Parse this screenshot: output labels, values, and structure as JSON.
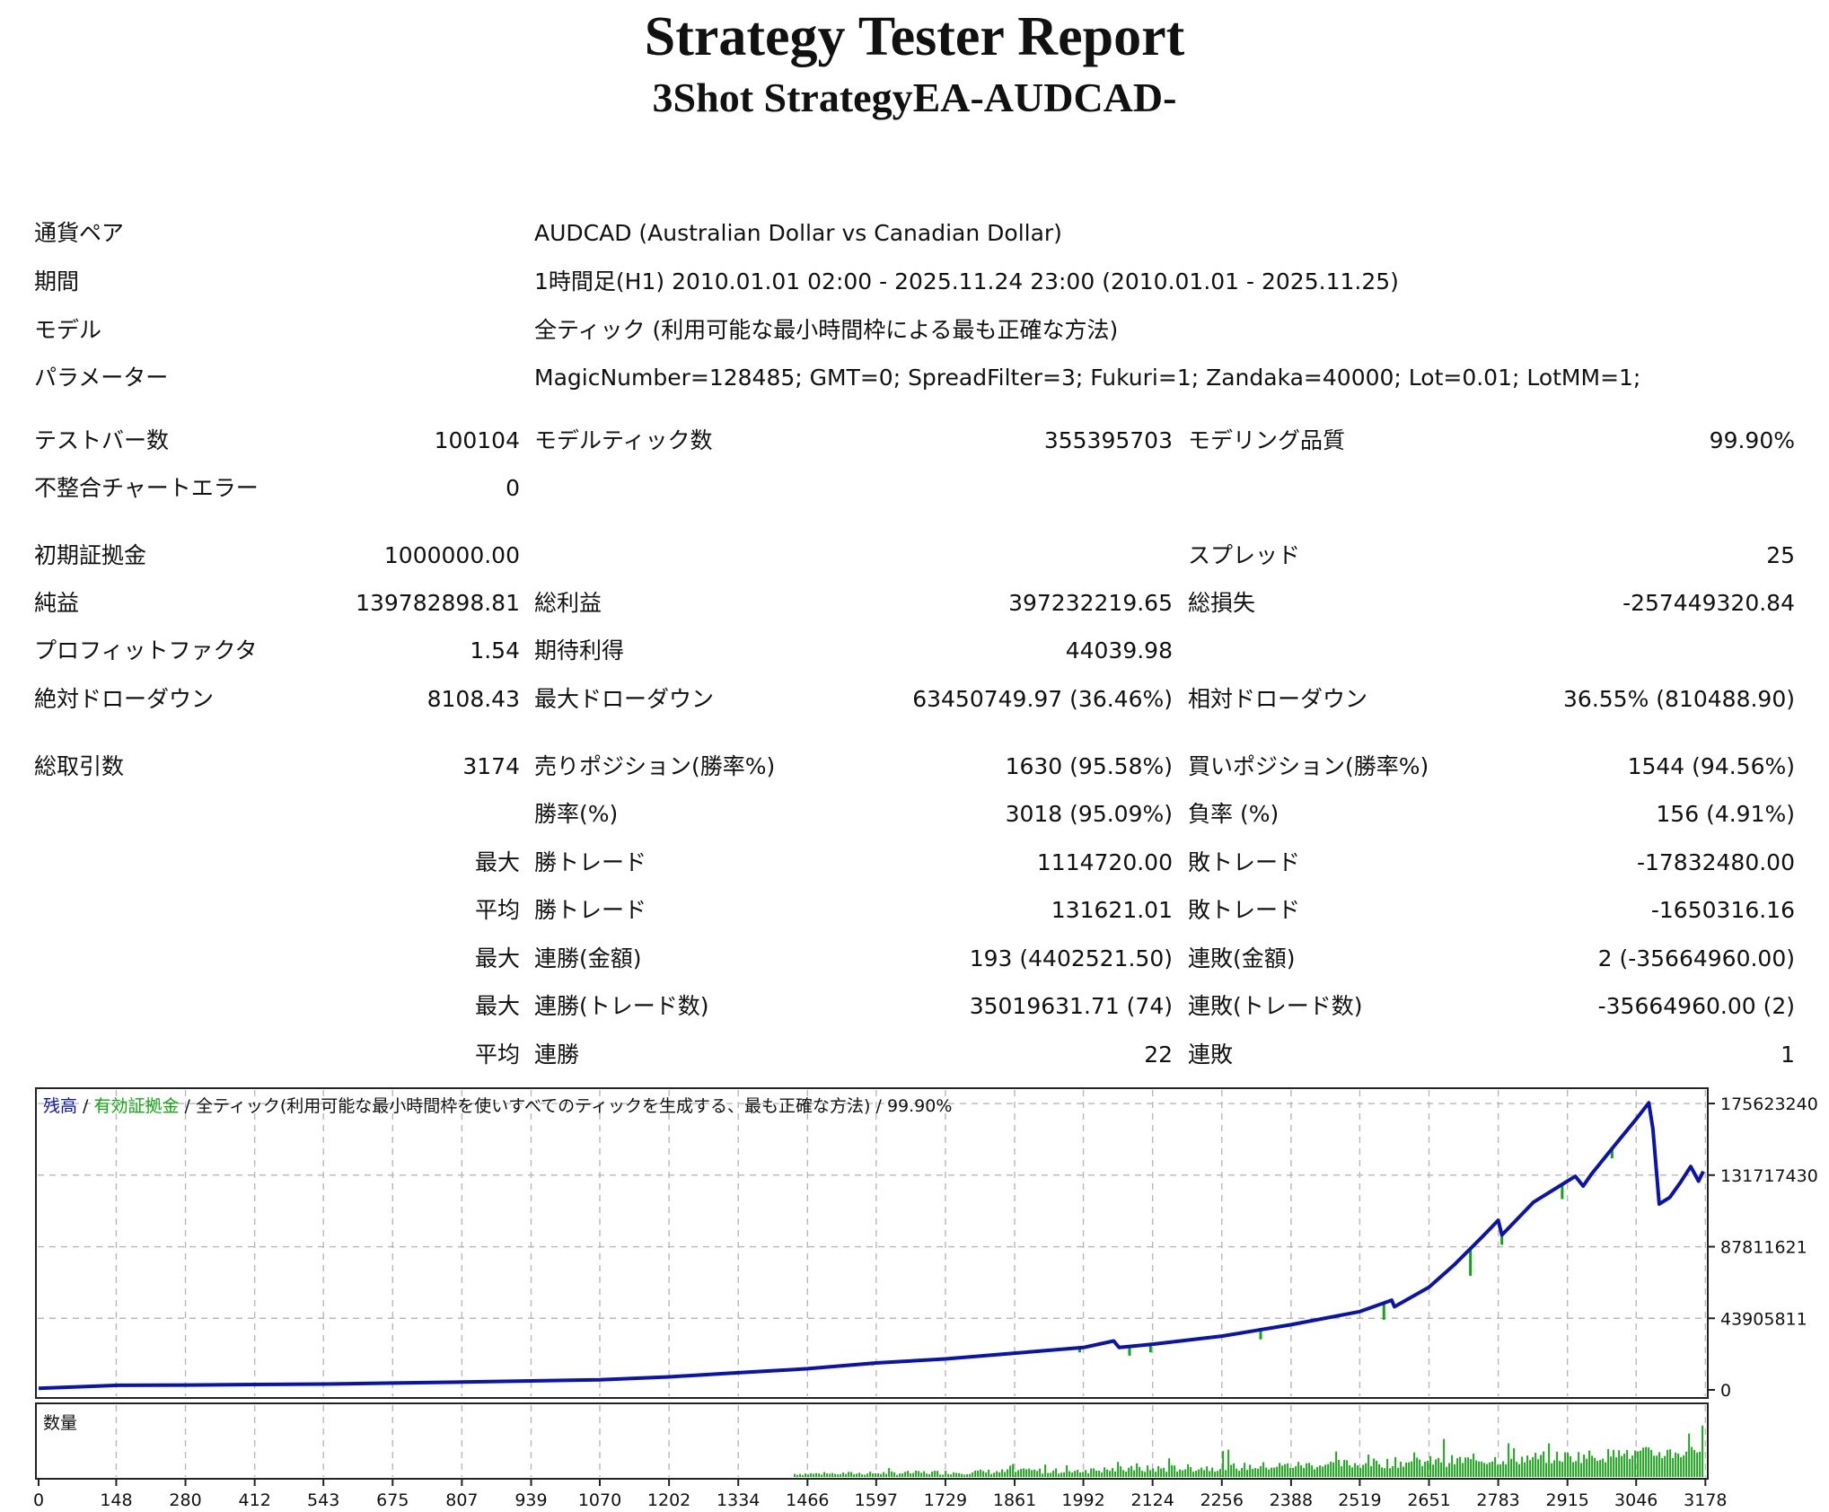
{
  "report": {
    "title": "Strategy Tester Report",
    "subtitle": "3Shot StrategyEA-AUDCAD-"
  },
  "info": {
    "pair_label": "通貨ペア",
    "pair_value": "AUDCAD (Australian Dollar vs Canadian Dollar)",
    "period_label": "期間",
    "period_value": "1時間足(H1) 2010.01.01 02:00 - 2025.11.24 23:00 (2010.01.01 - 2025.11.25)",
    "model_label": "モデル",
    "model_value": "全ティック (利用可能な最小時間枠による最も正確な方法)",
    "params_label": "パラメーター",
    "params_value": "MagicNumber=128485; GMT=0; SpreadFilter=3; Fukuri=1; Zandaka=40000; Lot=0.01; LotMM=1;"
  },
  "stats": {
    "bars_label": "テストバー数",
    "bars_value": "100104",
    "ticks_label": "モデルティック数",
    "ticks_value": "355395703",
    "quality_label": "モデリング品質",
    "quality_value": "99.90%",
    "mismatch_label": "不整合チャートエラー",
    "mismatch_value": "0",
    "deposit_label": "初期証拠金",
    "deposit_value": "1000000.00",
    "spread_label": "スプレッド",
    "spread_value": "25",
    "net_label": "純益",
    "net_value": "139782898.81",
    "gross_profit_label": "総利益",
    "gross_profit_value": "397232219.65",
    "gross_loss_label": "総損失",
    "gross_loss_value": "-257449320.84",
    "pf_label": "プロフィットファクタ",
    "pf_value": "1.54",
    "expected_label": "期待利得",
    "expected_value": "44039.98",
    "abs_dd_label": "絶対ドローダウン",
    "abs_dd_value": "8108.43",
    "max_dd_label": "最大ドローダウン",
    "max_dd_value": "63450749.97 (36.46%)",
    "rel_dd_label": "相対ドローダウン",
    "rel_dd_value": "36.55% (810488.90)",
    "trades_label": "総取引数",
    "trades_value": "3174",
    "short_label": "売りポジション(勝率%)",
    "short_value": "1630 (95.58%)",
    "long_label": "買いポジション(勝率%)",
    "long_value": "1544 (94.56%)",
    "win_label": "勝率(%)",
    "win_value": "3018 (95.09%)",
    "loss_label": "負率 (%)",
    "loss_value": "156 (4.91%)",
    "max_label_1": "最大",
    "largest_win_label": "勝トレード",
    "largest_win_value": "1114720.00",
    "largest_loss_label": "敗トレード",
    "largest_loss_value": "-17832480.00",
    "avg_label_1": "平均",
    "avg_win_label": "勝トレード",
    "avg_win_value": "131621.01",
    "avg_loss_label": "敗トレード",
    "avg_loss_value": "-1650316.16",
    "max_label_2": "最大",
    "consec_wins_money_label": "連勝(金額)",
    "consec_wins_money_value": "193 (4402521.50)",
    "consec_losses_money_label": "連敗(金額)",
    "consec_losses_money_value": "2 (-35664960.00)",
    "max_label_3": "最大",
    "consec_wins_trades_label": "連勝(トレード数)",
    "consec_wins_trades_value": "35019631.71 (74)",
    "consec_losses_trades_label": "連敗(トレード数)",
    "consec_losses_trades_value": "-35664960.00 (2)",
    "avg_label_2": "平均",
    "avg_consec_wins_label": "連勝",
    "avg_consec_wins_value": "22",
    "avg_consec_losses_label": "連敗",
    "avg_consec_losses_value": "1"
  },
  "chart_data": {
    "type": "line",
    "legend": {
      "balance": "残高",
      "sep1": " / ",
      "equity": "有効証拠金",
      "sep2": " / ",
      "model": "全ティック(利用可能な最小時間枠を使いすべてのティックを生成する、最も正確な方法)",
      "sep3": " / ",
      "quality": "99.90%"
    },
    "volume_label": "数量",
    "x_ticks": [
      0,
      148,
      280,
      412,
      543,
      675,
      807,
      939,
      1070,
      1202,
      1334,
      1466,
      1597,
      1729,
      1861,
      1992,
      2124,
      2256,
      2388,
      2519,
      2651,
      2783,
      2915,
      3046,
      3178
    ],
    "y_tick_labels": [
      "175623240",
      "131717430",
      "87811621",
      "43905811",
      "0"
    ],
    "y_ticks": [
      175623240,
      131717430,
      87811621,
      43905811,
      0
    ],
    "ylim": [
      0,
      185000000
    ],
    "xlim": [
      0,
      3174
    ],
    "series": [
      {
        "name": "残高",
        "color": "#0a14aa",
        "x": [
          0,
          148,
          280,
          412,
          543,
          675,
          807,
          939,
          1070,
          1202,
          1334,
          1466,
          1597,
          1729,
          1861,
          1992,
          2050,
          2060,
          2124,
          2256,
          2388,
          2519,
          2580,
          2585,
          2651,
          2700,
          2750,
          2783,
          2790,
          2850,
          2915,
          2930,
          2945,
          2960,
          3000,
          3046,
          3070,
          3078,
          3090,
          3110,
          3130,
          3150,
          3165,
          3174
        ],
        "y": [
          1000000,
          2800000,
          3000000,
          3300000,
          3600000,
          4200000,
          4800000,
          5500000,
          6200000,
          8000000,
          10500000,
          13000000,
          16500000,
          19000000,
          22500000,
          26000000,
          30000000,
          26000000,
          28000000,
          33000000,
          40000000,
          48000000,
          55000000,
          51000000,
          63000000,
          77000000,
          93000000,
          104000000,
          95000000,
          115000000,
          128000000,
          131000000,
          125000000,
          132000000,
          148000000,
          166000000,
          176000000,
          160000000,
          114000000,
          118000000,
          127000000,
          137000000,
          128000000,
          134000000
        ]
      }
    ],
    "equity_dips": [
      [
        1590,
        15000000
      ],
      [
        1985,
        23000000
      ],
      [
        2080,
        21000000
      ],
      [
        2120,
        23000000
      ],
      [
        2330,
        31000000
      ],
      [
        2565,
        43000000
      ],
      [
        2730,
        70000000
      ],
      [
        2790,
        89000000
      ],
      [
        2905,
        117000000
      ],
      [
        3000,
        142000000
      ]
    ],
    "volume_start": 1440,
    "colors": {
      "balance": "#0a14aa",
      "equity": "#0fa80f",
      "volume": "#1aa81a",
      "grid": "#b8b8b8"
    }
  }
}
